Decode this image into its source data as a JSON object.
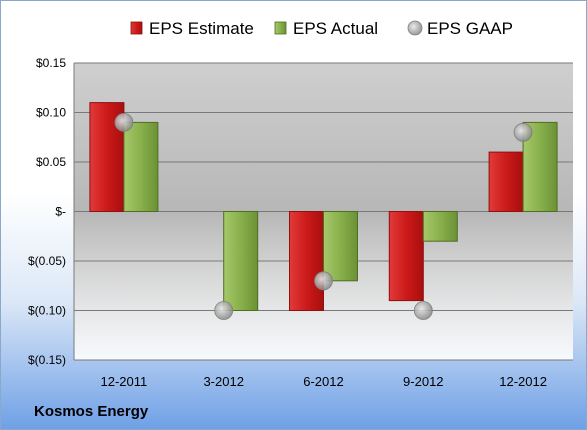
{
  "company": "Kosmos Energy",
  "chart_data": {
    "type": "bar",
    "categories": [
      "12-2011",
      "3-2012",
      "6-2012",
      "9-2012",
      "12-2012"
    ],
    "series": [
      {
        "name": "EPS Estimate",
        "kind": "bar",
        "color": "#cc1a1a",
        "values": [
          0.11,
          null,
          -0.1,
          -0.09,
          0.06
        ]
      },
      {
        "name": "EPS Actual",
        "kind": "bar",
        "color": "#88b04b",
        "values": [
          0.09,
          -0.1,
          -0.07,
          -0.03,
          0.09
        ]
      },
      {
        "name": "EPS GAAP",
        "kind": "scatter",
        "color": "#b8b8b8",
        "values": [
          0.09,
          -0.1,
          -0.07,
          -0.1,
          0.08
        ]
      }
    ],
    "yticks": [
      0.15,
      0.1,
      0.05,
      0,
      -0.05,
      -0.1,
      -0.15
    ],
    "ytick_labels": [
      "$0.15",
      "$0.10",
      "$0.05",
      "$-",
      "$(0.05)",
      "$(0.10)",
      "$(0.15)"
    ],
    "ylim": [
      -0.15,
      0.15
    ],
    "legend_position": "top",
    "grid": true,
    "title": "",
    "xlabel": "",
    "ylabel": ""
  }
}
